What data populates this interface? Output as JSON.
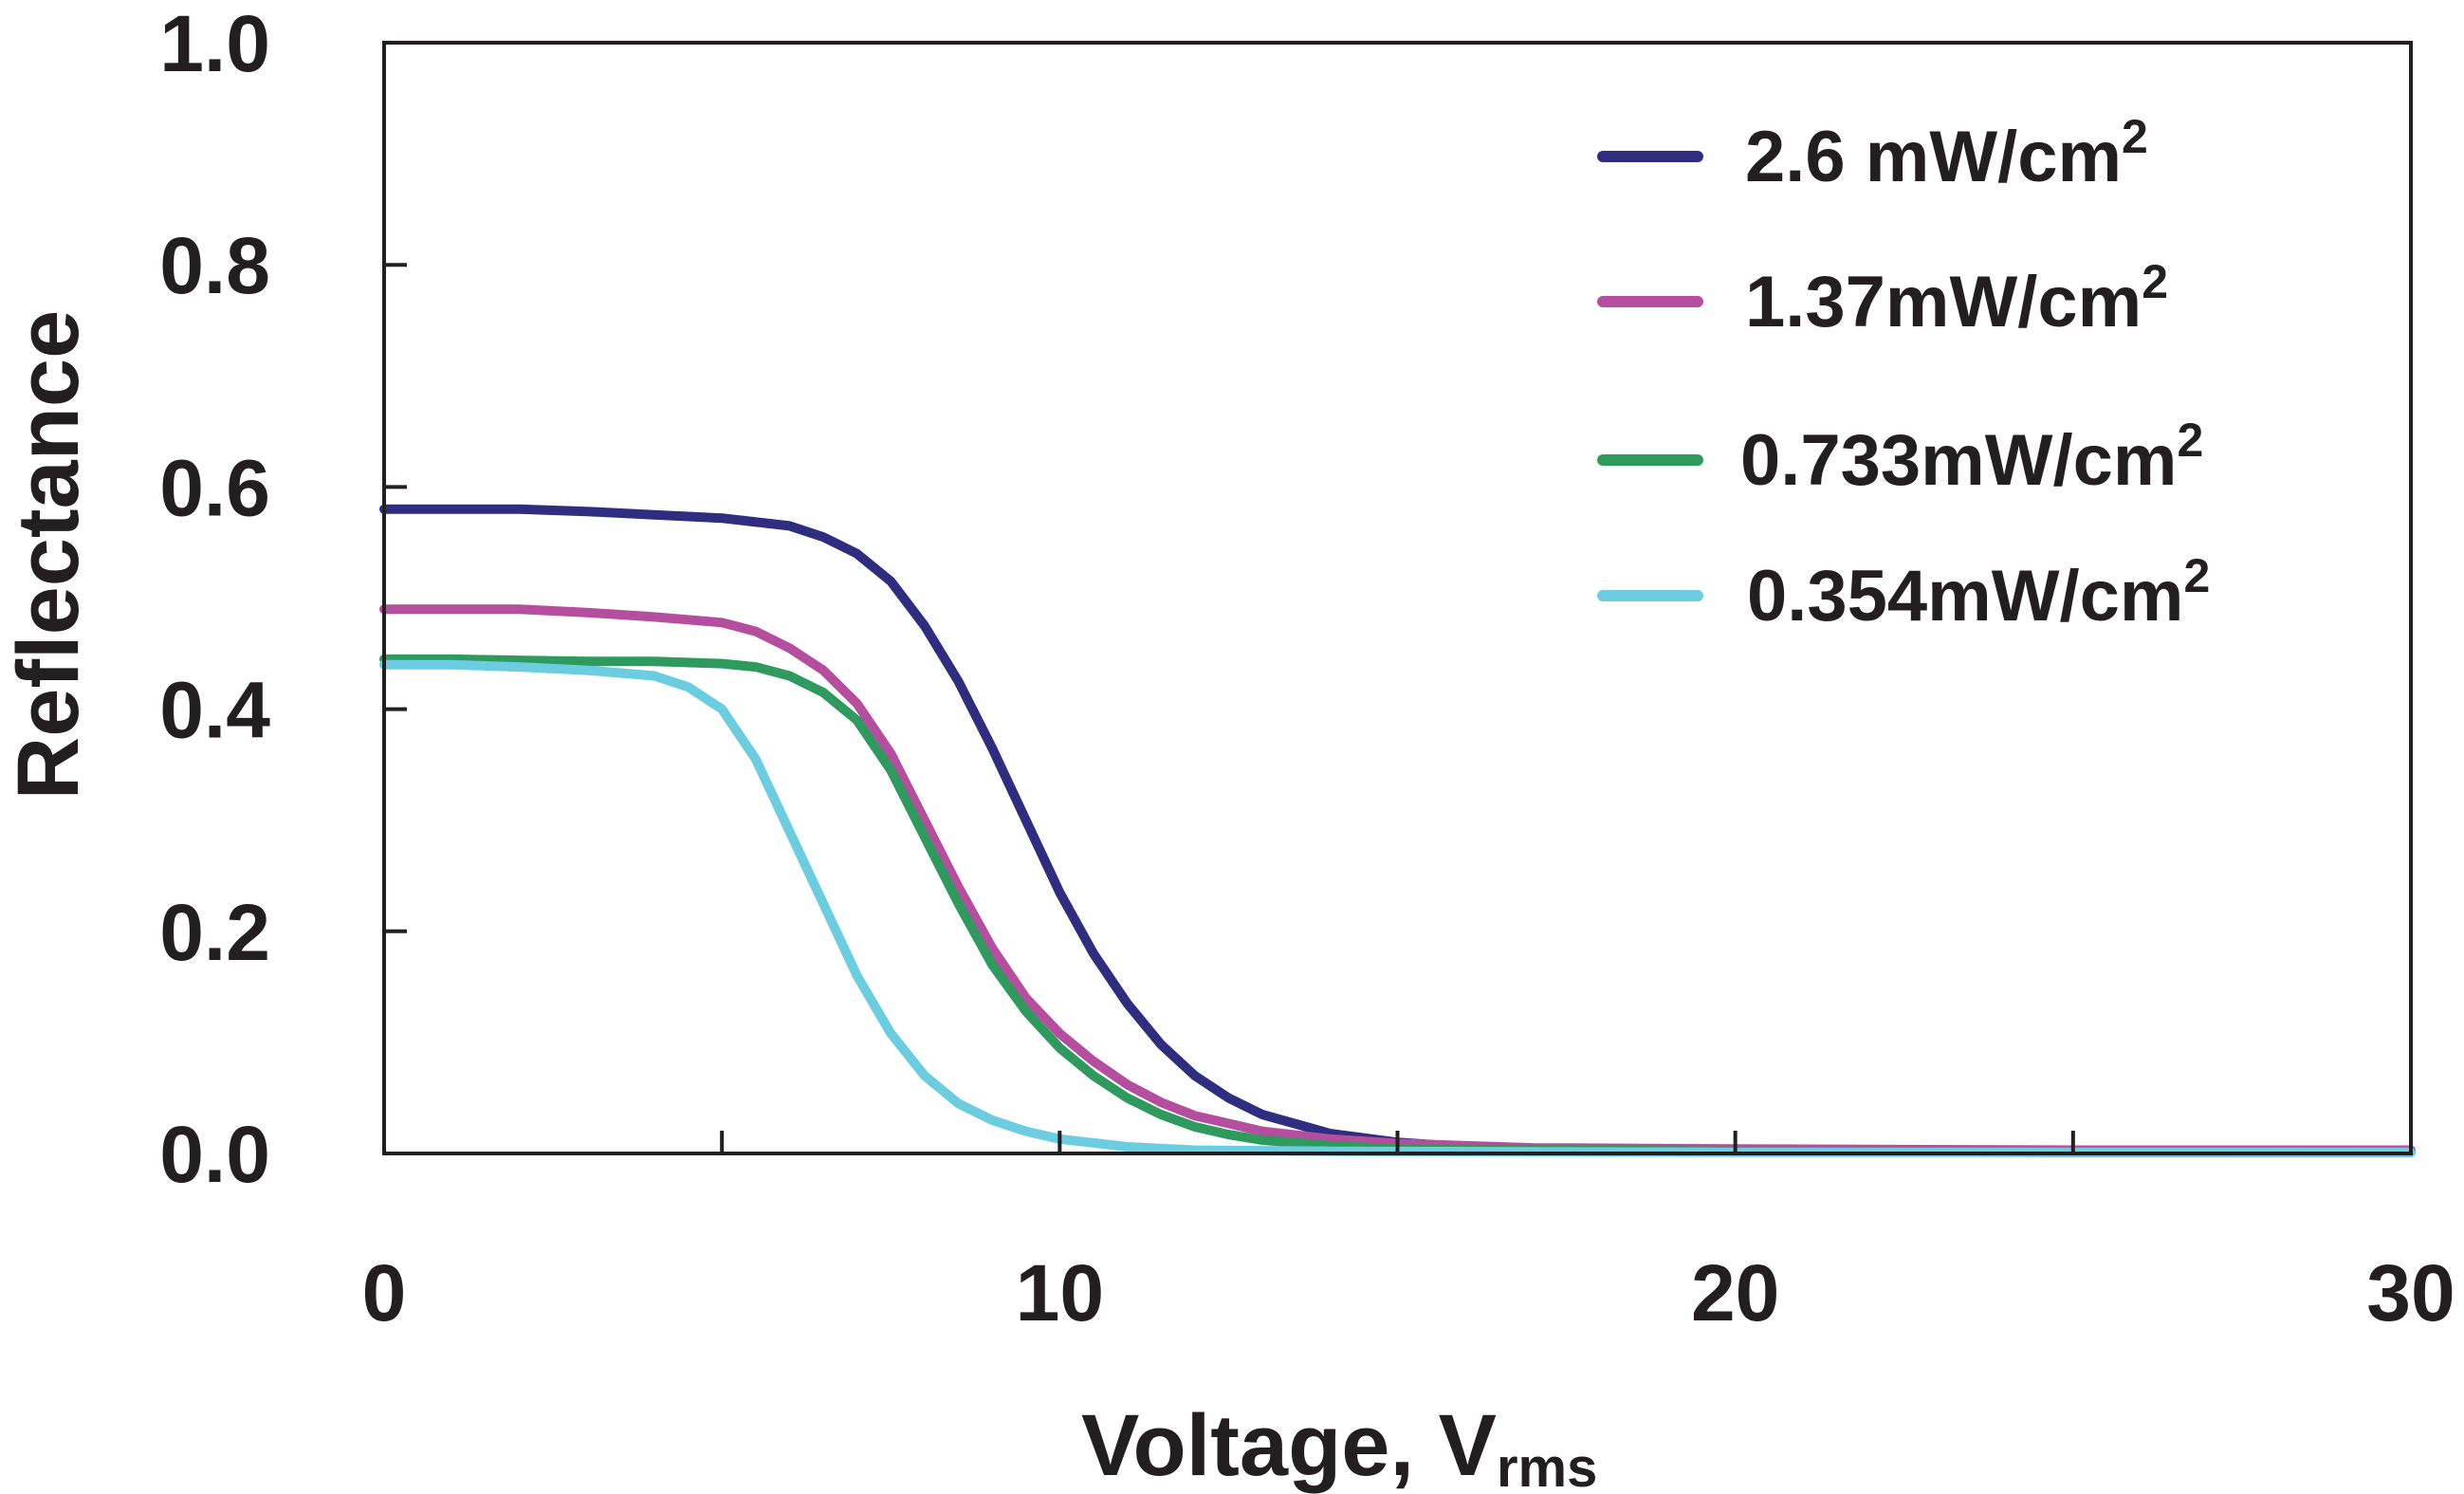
{
  "chart_data": {
    "type": "line",
    "title": "",
    "xlabel": "Voltage, V",
    "xlabel_subscript": "rms",
    "ylabel": "Reflectance",
    "xlim": [
      0,
      30
    ],
    "ylim": [
      0,
      1.0
    ],
    "x_ticks": [
      0,
      10,
      20,
      30
    ],
    "x_tick_labels": [
      "0",
      "10",
      "20",
      "30"
    ],
    "x_minor_ticks": [
      5,
      15,
      25
    ],
    "y_ticks": [
      0,
      0.2,
      0.4,
      0.6,
      0.8,
      1.0
    ],
    "y_tick_labels": [
      "0.0",
      "0.2",
      "0.4",
      "0.6",
      "0.8",
      "1.0"
    ],
    "grid": false,
    "legend_position": "top-right",
    "series": [
      {
        "name": "2.6 mW/cm",
        "superscript": "2",
        "color": "#2e2d7f",
        "points": [
          [
            0,
            0.58
          ],
          [
            1,
            0.58
          ],
          [
            2,
            0.58
          ],
          [
            3,
            0.578
          ],
          [
            4,
            0.575
          ],
          [
            5,
            0.572
          ],
          [
            6,
            0.565
          ],
          [
            6.5,
            0.555
          ],
          [
            7,
            0.54
          ],
          [
            7.5,
            0.515
          ],
          [
            8,
            0.475
          ],
          [
            8.5,
            0.425
          ],
          [
            9,
            0.365
          ],
          [
            9.5,
            0.3
          ],
          [
            10,
            0.235
          ],
          [
            10.5,
            0.18
          ],
          [
            11,
            0.135
          ],
          [
            11.5,
            0.098
          ],
          [
            12,
            0.07
          ],
          [
            12.5,
            0.05
          ],
          [
            13,
            0.035
          ],
          [
            14,
            0.018
          ],
          [
            15,
            0.01
          ],
          [
            16,
            0.006
          ],
          [
            18,
            0.003
          ],
          [
            20,
            0.002
          ],
          [
            25,
            0.001
          ],
          [
            30,
            0.001
          ]
        ]
      },
      {
        "name": "1.37mW/cm",
        "superscript": "2",
        "color": "#b54e9e",
        "points": [
          [
            0,
            0.49
          ],
          [
            1,
            0.49
          ],
          [
            2,
            0.49
          ],
          [
            3,
            0.487
          ],
          [
            4,
            0.483
          ],
          [
            5,
            0.478
          ],
          [
            5.5,
            0.47
          ],
          [
            6,
            0.455
          ],
          [
            6.5,
            0.435
          ],
          [
            7,
            0.405
          ],
          [
            7.5,
            0.36
          ],
          [
            8,
            0.3
          ],
          [
            8.5,
            0.24
          ],
          [
            9,
            0.185
          ],
          [
            9.5,
            0.14
          ],
          [
            10,
            0.108
          ],
          [
            10.5,
            0.083
          ],
          [
            11,
            0.062
          ],
          [
            11.5,
            0.046
          ],
          [
            12,
            0.034
          ],
          [
            13,
            0.02
          ],
          [
            14,
            0.013
          ],
          [
            15,
            0.009
          ],
          [
            17,
            0.005
          ],
          [
            20,
            0.004
          ],
          [
            25,
            0.003
          ],
          [
            30,
            0.003
          ]
        ]
      },
      {
        "name": "0.733mW/cm",
        "superscript": "2",
        "color": "#2e9a5e",
        "points": [
          [
            0,
            0.445
          ],
          [
            1,
            0.445
          ],
          [
            2,
            0.444
          ],
          [
            3,
            0.443
          ],
          [
            4,
            0.443
          ],
          [
            5,
            0.441
          ],
          [
            5.5,
            0.438
          ],
          [
            6,
            0.43
          ],
          [
            6.5,
            0.415
          ],
          [
            7,
            0.39
          ],
          [
            7.5,
            0.345
          ],
          [
            8,
            0.285
          ],
          [
            8.5,
            0.225
          ],
          [
            9,
            0.17
          ],
          [
            9.5,
            0.128
          ],
          [
            10,
            0.095
          ],
          [
            10.5,
            0.07
          ],
          [
            11,
            0.05
          ],
          [
            11.5,
            0.035
          ],
          [
            12,
            0.024
          ],
          [
            12.5,
            0.017
          ],
          [
            13,
            0.012
          ],
          [
            14,
            0.007
          ],
          [
            15,
            0.004
          ],
          [
            20,
            0.002
          ],
          [
            30,
            0.001
          ]
        ]
      },
      {
        "name": "0.354mW/cm",
        "superscript": "2",
        "color": "#6ccde0",
        "points": [
          [
            0,
            0.44
          ],
          [
            1,
            0.44
          ],
          [
            2,
            0.438
          ],
          [
            3,
            0.435
          ],
          [
            4,
            0.43
          ],
          [
            4.5,
            0.42
          ],
          [
            5,
            0.4
          ],
          [
            5.5,
            0.355
          ],
          [
            6,
            0.29
          ],
          [
            6.5,
            0.225
          ],
          [
            7,
            0.16
          ],
          [
            7.5,
            0.108
          ],
          [
            8,
            0.07
          ],
          [
            8.5,
            0.045
          ],
          [
            9,
            0.03
          ],
          [
            9.5,
            0.02
          ],
          [
            10,
            0.013
          ],
          [
            11,
            0.006
          ],
          [
            12,
            0.003
          ],
          [
            14,
            0.002
          ],
          [
            20,
            0.001
          ],
          [
            30,
            0.001
          ]
        ]
      }
    ]
  }
}
